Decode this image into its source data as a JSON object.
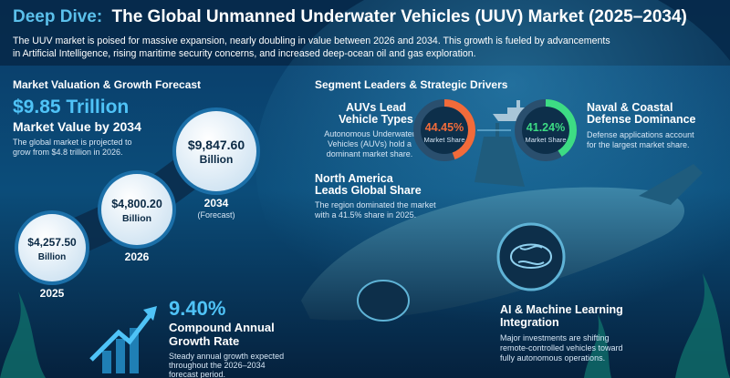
{
  "header": {
    "title_highlight": "Deep Dive:",
    "title": "The Global Unmanned Underwater Vehicles (UUV) Market (2025–2034)",
    "subtitle": [
      "The UUV market is poised for massive expansion, nearly doubling in value between 2026 and 2034. This growth is fueled by advancements",
      "in Artificial Intelligence, rising maritime security concerns, and increased deep-ocean oil and gas exploration."
    ]
  },
  "valuation": {
    "heading": "Market Valuation & Growth Forecast",
    "headline": "$9.85 Trillion",
    "headline_caption": "Market Value by 2034",
    "description": [
      "The global market is projected to",
      "grow from $4.8 trillion in 2026."
    ],
    "bubbles": [
      {
        "amount": "$4,257.50",
        "unit": "Billion",
        "year": "2025"
      },
      {
        "amount": "$4,800.20",
        "unit": "Billion",
        "year": "2026"
      },
      {
        "amount": "$9,847.60",
        "unit": "Billion",
        "year": "2034",
        "note": "(Forecast)"
      }
    ]
  },
  "cagr": {
    "value": "9.40%",
    "caption": [
      "Compound Annual",
      "Growth Rate"
    ],
    "description": [
      "Steady annual growth expected",
      "throughout the 2026–2034",
      "forecast period."
    ]
  },
  "segments": {
    "heading": "Segment Leaders & Strategic Drivers",
    "auv": {
      "title": [
        "AUVs Lead",
        "Vehicle Types"
      ],
      "description": [
        "Autonomous Underwater",
        "Vehicles (AUVs) hold a",
        "dominant market share."
      ],
      "share": {
        "value": 44.45,
        "label": "44.45%"
      },
      "share_caption": "Market Share",
      "color": "#f26b3a"
    },
    "naval": {
      "title": [
        "Naval & Coastal",
        "Defense Dominance"
      ],
      "description": [
        "Defense applications account",
        "for the largest market share."
      ],
      "share": {
        "value": 41.24,
        "label": "41.24%"
      },
      "share_caption": "Market Share",
      "color": "#3ddc84"
    },
    "north_america": {
      "title": [
        "North America",
        "Leads Global Share"
      ],
      "description": [
        "The region dominated the market",
        "with a 41.5% share in 2025."
      ]
    },
    "ai": {
      "title": [
        "AI & Machine Learning",
        "Integration"
      ],
      "description": [
        "Major investments are shifting",
        "remote-controlled vehicles toward",
        "fully autonomous operations."
      ]
    }
  }
}
